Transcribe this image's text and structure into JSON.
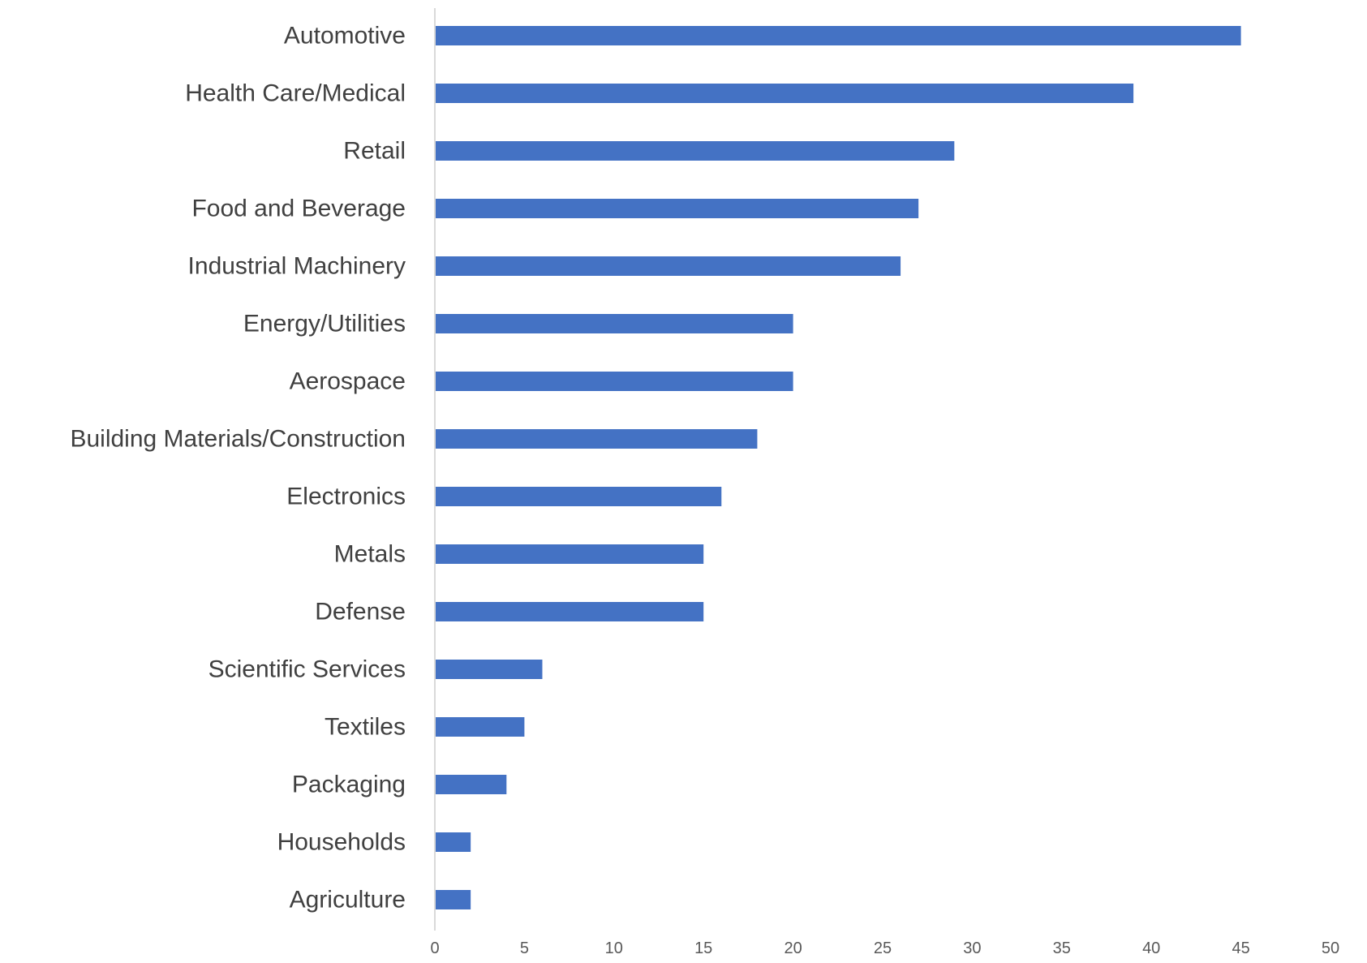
{
  "chart_data": {
    "type": "bar",
    "orientation": "horizontal",
    "title": "",
    "xlabel": "",
    "ylabel": "",
    "categories": [
      "Automotive",
      "Health Care/Medical",
      "Retail",
      "Food and Beverage",
      "Industrial Machinery",
      "Energy/Utilities",
      "Aerospace",
      "Building Materials/Construction",
      "Electronics",
      "Metals",
      "Defense",
      "Scientific Services",
      "Textiles",
      "Packaging",
      "Households",
      "Agriculture"
    ],
    "values": [
      45,
      39,
      29,
      27,
      26,
      20,
      20,
      18,
      16,
      15,
      15,
      6,
      5,
      4,
      2,
      2
    ],
    "xlim": [
      0,
      50
    ],
    "x_ticks": [
      "0",
      "5",
      "10",
      "15",
      "20",
      "25",
      "30",
      "35",
      "40",
      "45",
      "50"
    ],
    "grid": false,
    "legend": "none",
    "bar_color": "#4472c4"
  }
}
